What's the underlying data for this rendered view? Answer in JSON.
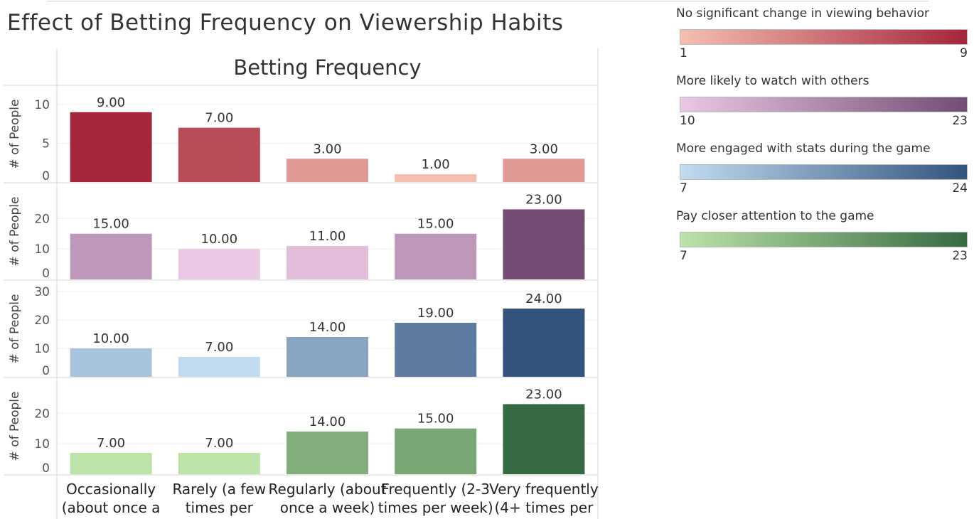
{
  "page_title": "Effect of Betting Frequency on Viewership Habits",
  "chart_data": {
    "type": "bar",
    "title": "Effect of Betting Frequency on Viewership Habits",
    "column_header": "Betting Frequency",
    "ylabel": "# of People",
    "categories": [
      [
        "Occasionally",
        "(about once a"
      ],
      [
        "Rarely (a few",
        "times per"
      ],
      [
        "Regularly (about",
        "once a week)"
      ],
      [
        "Frequently (2-3",
        "times per week)"
      ],
      [
        "Very frequently",
        "(4+ times per"
      ]
    ],
    "series": [
      {
        "name": "No significant change in viewing behavior",
        "values": [
          9,
          7,
          3,
          1,
          3
        ],
        "labels": [
          "9.00",
          "7.00",
          "3.00",
          "1.00",
          "3.00"
        ],
        "ylim": [
          0,
          11
        ],
        "ticks": [
          0,
          5,
          10
        ],
        "color_low": "#f4bfb1",
        "color_high": "#a5253b",
        "legend_min": "1",
        "legend_max": "9"
      },
      {
        "name": "More likely to watch with others",
        "values": [
          15,
          10,
          11,
          15,
          23
        ],
        "labels": [
          "15.00",
          "10.00",
          "11.00",
          "15.00",
          "23.00"
        ],
        "ylim": [
          0,
          28
        ],
        "ticks": [
          0,
          10,
          20
        ],
        "color_low": "#ebc8e3",
        "color_high": "#744c74",
        "legend_min": "10",
        "legend_max": "23"
      },
      {
        "name": "More engaged with stats during the game",
        "values": [
          10,
          7,
          14,
          19,
          24
        ],
        "labels": [
          "10.00",
          "7.00",
          "14.00",
          "19.00",
          "24.00"
        ],
        "ylim": [
          0,
          30
        ],
        "ticks": [
          0,
          10,
          20,
          30
        ],
        "color_low": "#c1dcf1",
        "color_high": "#33547d",
        "legend_min": "7",
        "legend_max": "24"
      },
      {
        "name": "Pay closer attention to the game",
        "values": [
          7,
          7,
          14,
          15,
          23
        ],
        "labels": [
          "7.00",
          "7.00",
          "14.00",
          "15.00",
          "23.00"
        ],
        "ylim": [
          0,
          28
        ],
        "ticks": [
          0,
          10,
          20
        ],
        "color_low": "#bde3a8",
        "color_high": "#356a42",
        "legend_min": "7",
        "legend_max": "23"
      }
    ]
  }
}
